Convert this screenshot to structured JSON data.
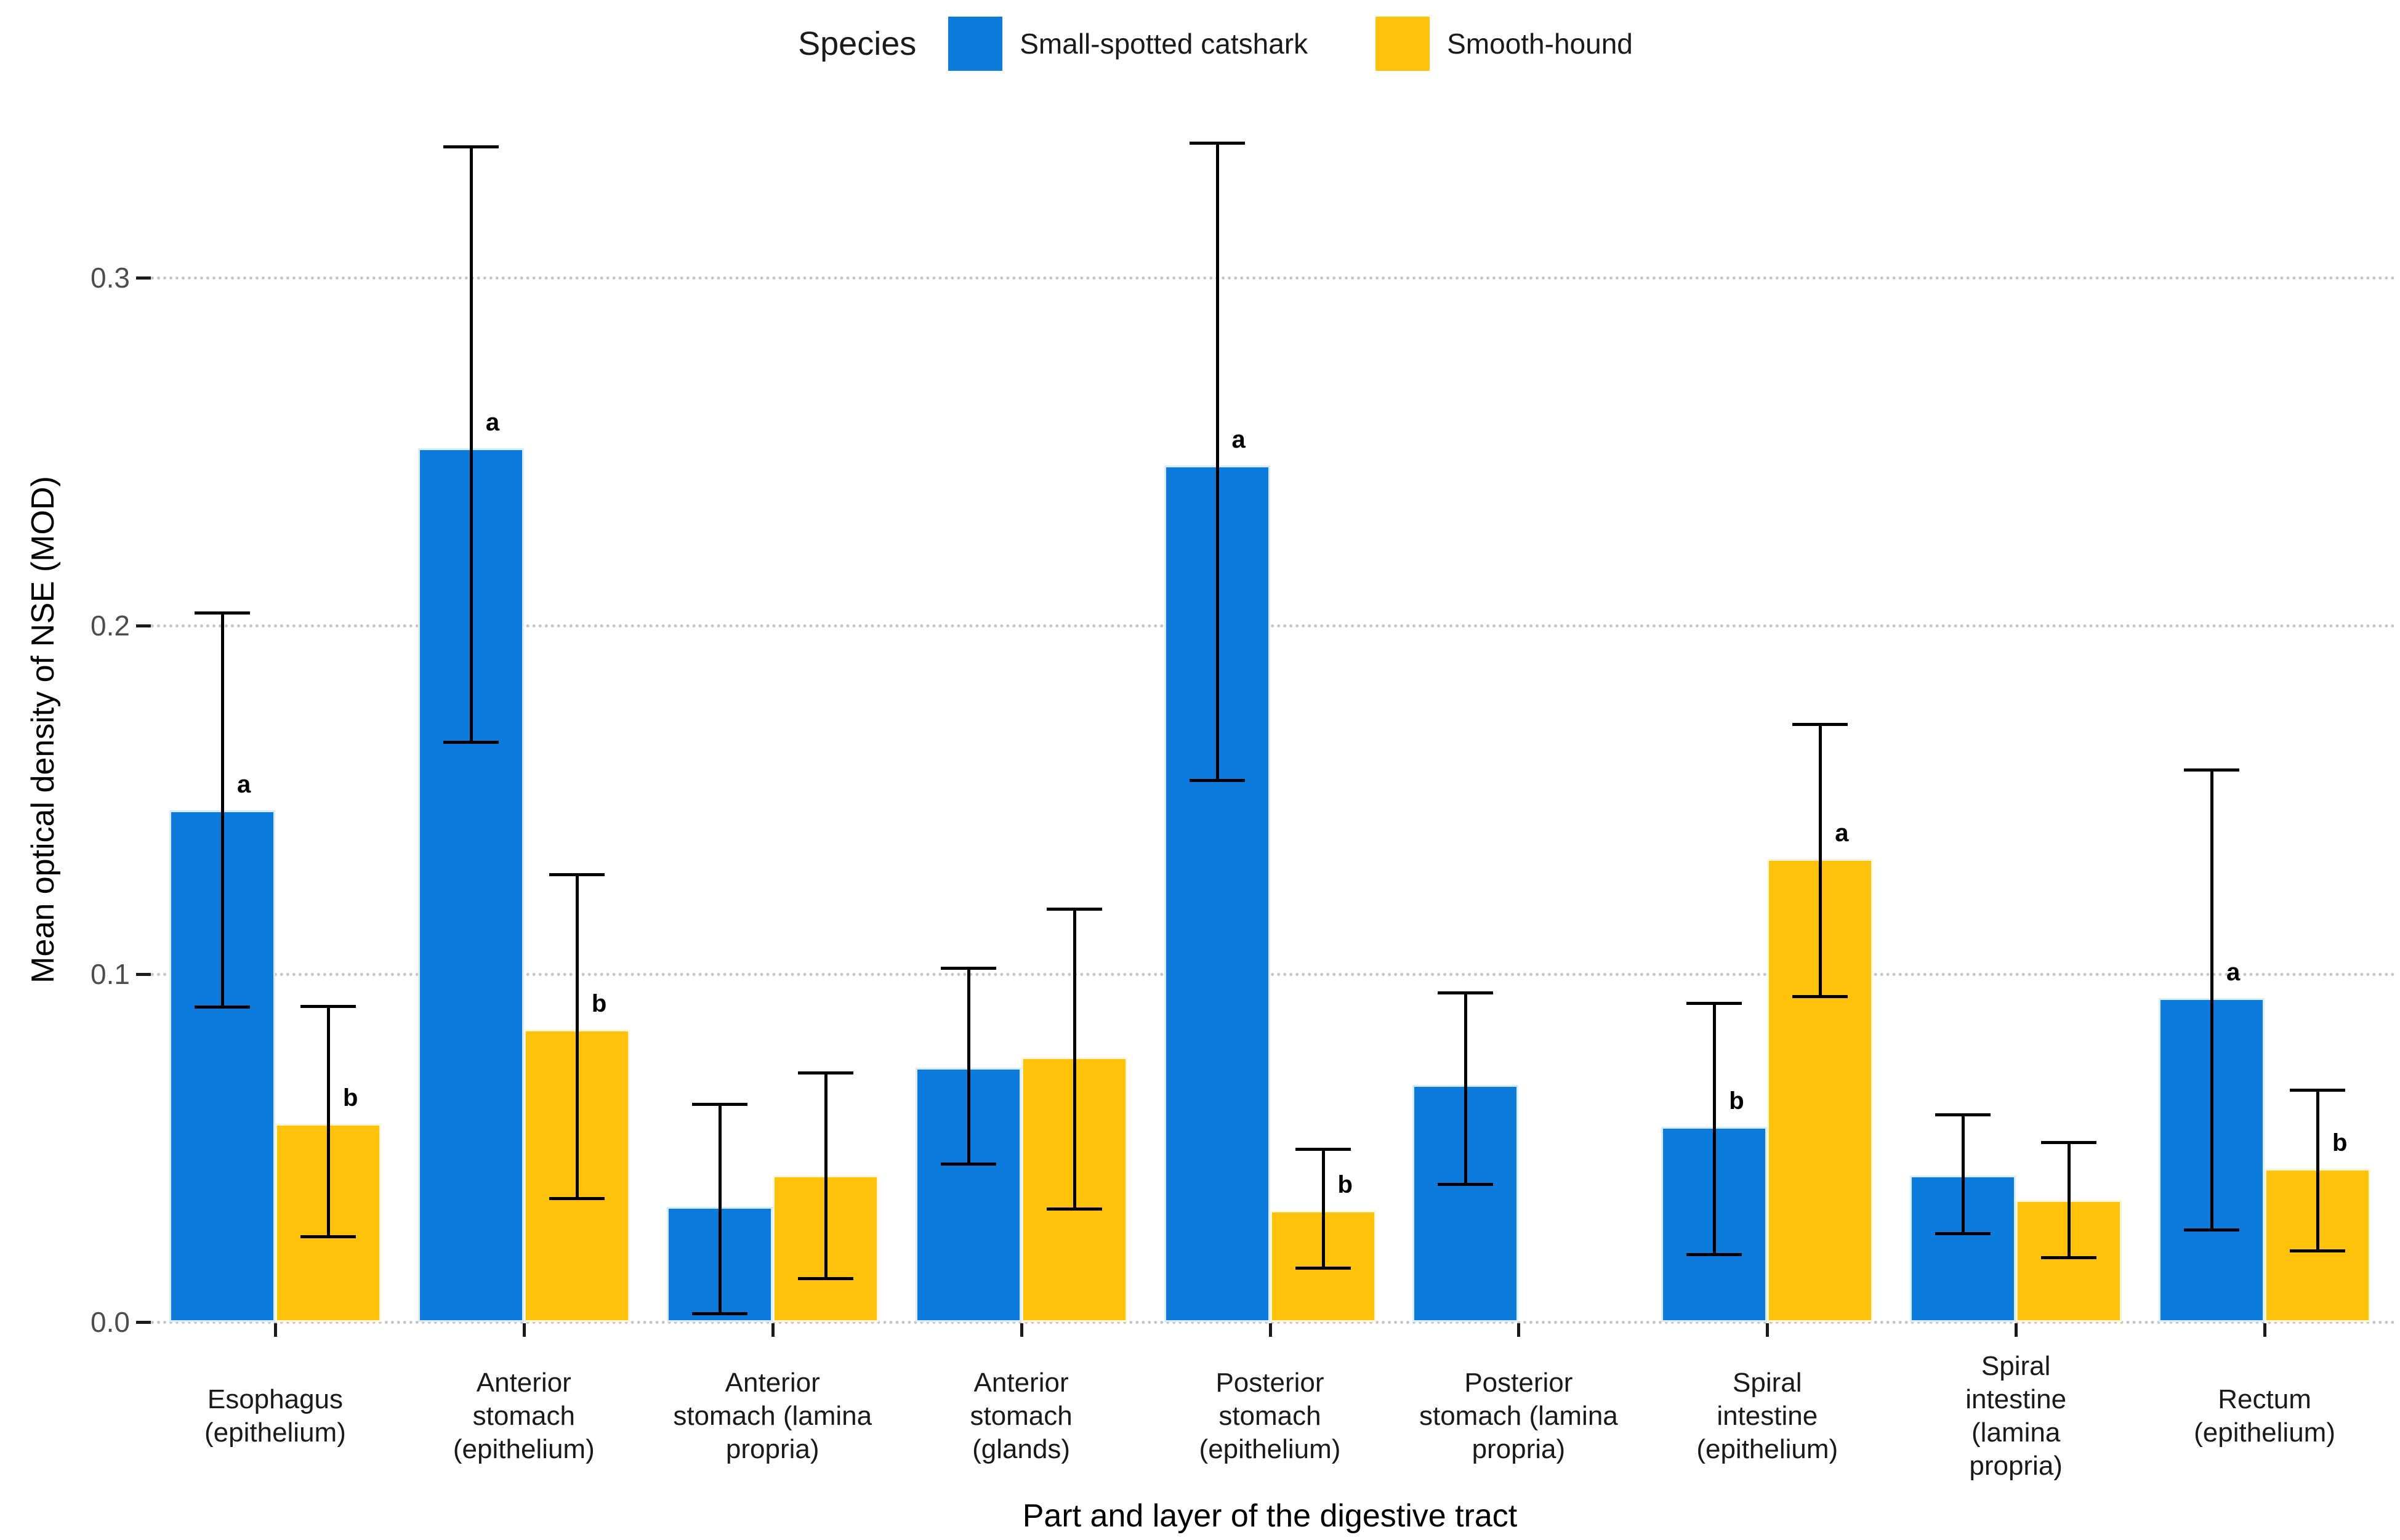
{
  "legend": {
    "title": "Species",
    "items": [
      {
        "label": "Small-spotted catshark",
        "color": "#0C7BDC"
      },
      {
        "label": "Smooth-hound",
        "color": "#FFC20A"
      }
    ]
  },
  "colors": {
    "catshark_blue": "#0C7BDC",
    "smoothhound_yellow": "#FFC20A",
    "gridline_gray": "#c6c6c6",
    "errorbar_black": "#000000",
    "tick_label_gray": "#4d4d4d"
  },
  "chart_data": {
    "type": "bar",
    "title": "",
    "xlabel": "Part and layer of the digestive tract",
    "ylabel": "Mean optical density of NSE (MOD)",
    "ylim": [
      0,
      0.35
    ],
    "ytick_values": [
      0.0,
      0.1,
      0.2,
      0.3
    ],
    "ytick_labels": [
      "0.0",
      "0.1",
      "0.2",
      "0.3"
    ],
    "grid": "horizontal dotted lines at y ticks",
    "legend_position": "top center",
    "error_bars": "vertical with end caps",
    "categories": [
      "Esophagus (epithelium)",
      "Anterior stomach (epithelium)",
      "Anterior stomach (lamina propria)",
      "Anterior stomach (glands)",
      "Posterior stomach (epithelium)",
      "Posterior stomach (lamina propria)",
      "Spiral intestine (epithelium)",
      "Spiral intestine (lamina propria)",
      "Rectum (epithelium)"
    ],
    "category_label_lines": [
      [
        "Esophagus",
        "(epithelium)"
      ],
      [
        "Anterior",
        "stomach",
        "(epithelium)"
      ],
      [
        "Anterior",
        "stomach (lamina",
        "propria)"
      ],
      [
        "Anterior",
        "stomach",
        "(glands)"
      ],
      [
        "Posterior",
        "stomach",
        "(epithelium)"
      ],
      [
        "Posterior",
        "stomach (lamina",
        "propria)"
      ],
      [
        "Spiral",
        "intestine",
        "(epithelium)"
      ],
      [
        "Spiral",
        "intestine",
        "(lamina",
        "propria)"
      ],
      [
        "Rectum",
        "(epithelium)"
      ]
    ],
    "series": [
      {
        "name": "Small-spotted catshark",
        "color": "#0C7BDC",
        "values": [
          0.147,
          0.251,
          0.033,
          0.073,
          0.246,
          0.068,
          0.056,
          0.042,
          0.093
        ],
        "err_low": [
          0.09,
          0.166,
          0.002,
          0.045,
          0.155,
          0.039,
          0.019,
          0.025,
          0.026
        ],
        "err_high": [
          0.204,
          0.338,
          0.063,
          0.102,
          0.339,
          0.095,
          0.092,
          0.06,
          0.159
        ],
        "letters": [
          "a",
          "a",
          "",
          "",
          "a",
          "",
          "b",
          "",
          "a"
        ]
      },
      {
        "name": "Smooth-hound",
        "color": "#FFC20A",
        "values": [
          0.057,
          0.084,
          0.042,
          0.076,
          0.032,
          null,
          0.133,
          0.035,
          0.044
        ],
        "err_low": [
          0.024,
          0.035,
          0.012,
          0.032,
          0.015,
          null,
          0.093,
          0.018,
          0.02
        ],
        "err_high": [
          0.091,
          0.129,
          0.072,
          0.119,
          0.05,
          null,
          0.172,
          0.052,
          0.067
        ],
        "letters": [
          "b",
          "b",
          "",
          "",
          "b",
          "",
          "a",
          "",
          "b"
        ]
      }
    ]
  }
}
